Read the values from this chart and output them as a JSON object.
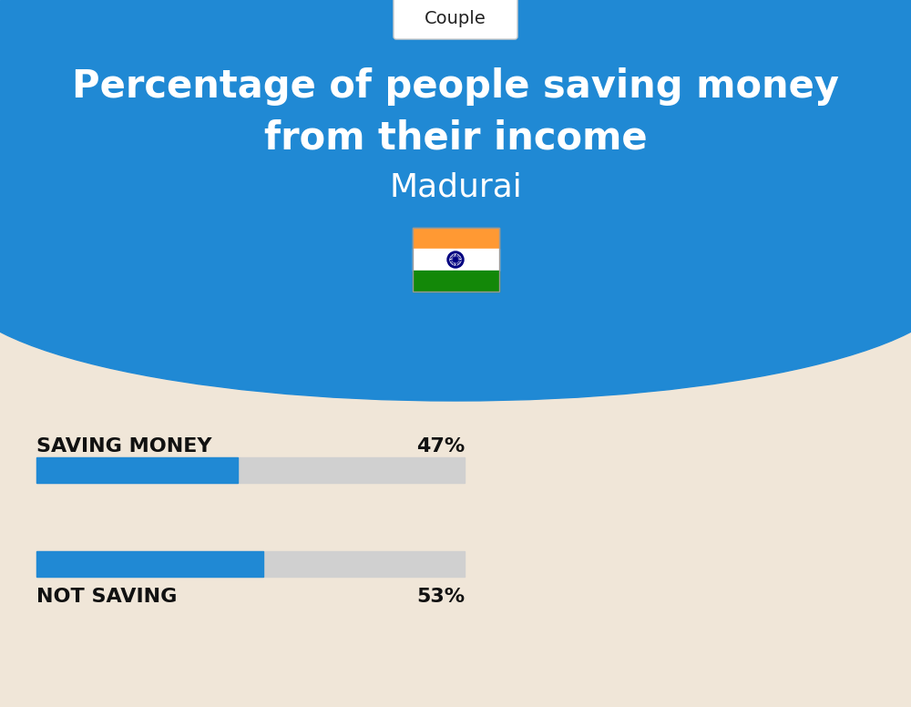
{
  "title_line1": "Percentage of people saving money",
  "title_line2": "from their income",
  "subtitle": "Madurai",
  "tag": "Couple",
  "saving_label": "SAVING MONEY",
  "saving_pct": 47,
  "saving_pct_label": "47%",
  "not_saving_label": "NOT SAVING",
  "not_saving_pct": 53,
  "not_saving_pct_label": "53%",
  "bg_color": "#f0e6d8",
  "blue_color": "#2089d4",
  "bar_blue": "#2089d4",
  "bar_gray": "#d0d0d0",
  "title_color": "#ffffff",
  "subtitle_color": "#ffffff",
  "tag_color": "#222222",
  "label_color": "#111111",
  "pct_color": "#111111",
  "fig_width": 10.0,
  "fig_height": 7.76,
  "dpi": 100
}
